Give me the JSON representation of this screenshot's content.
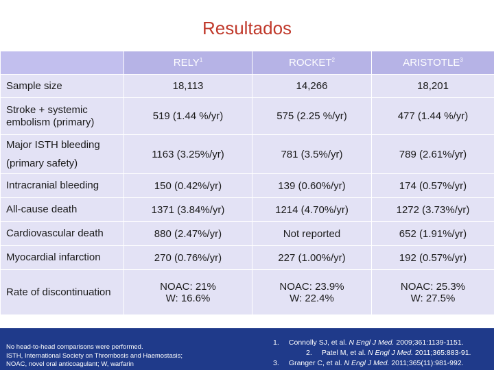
{
  "title": "Resultados",
  "table": {
    "headers": [
      {
        "name": "RELY",
        "sup": "1"
      },
      {
        "name": "ROCKET",
        "sup": "2"
      },
      {
        "name": "ARISTOTLE",
        "sup": "3"
      }
    ],
    "rows": [
      {
        "label": [
          "Sample size"
        ],
        "cells": [
          "18,113",
          "14,266",
          "18,201"
        ]
      },
      {
        "label": [
          "Stroke + systemic",
          "embolism (primary)"
        ],
        "cells": [
          "519 (1.44 %/yr)",
          "575 (2.25 %/yr)",
          "477 (1.44 %/yr)"
        ]
      },
      {
        "label": [
          "Major ISTH bleeding",
          "(primary safety)"
        ],
        "cells": [
          "1163 (3.25%/yr)",
          "781 (3.5%/yr)",
          "789 (2.61%/yr)"
        ]
      },
      {
        "label": [
          "Intracranial bleeding"
        ],
        "cells": [
          "150 (0.42%/yr)",
          "139 (0.60%/yr)",
          "174 (0.57%/yr)"
        ]
      },
      {
        "label": [
          "All-cause death"
        ],
        "cells": [
          "1371 (3.84%/yr)",
          "1214 (4.70%/yr)",
          "1272 (3.73%/yr)"
        ]
      },
      {
        "label": [
          "Cardiovascular death"
        ],
        "cells": [
          "880 (2.47%/yr)",
          "Not reported",
          "652 (1.91%/yr)"
        ]
      },
      {
        "label": [
          "Myocardial infarction"
        ],
        "cells": [
          "270 (0.76%/yr)",
          "227 (1.00%/yr)",
          "192 (0.57%/yr)"
        ]
      },
      {
        "label": [
          "Rate of discontinuation"
        ],
        "cells": [
          "NOAC: 21%|W: 16.6%",
          "NOAC: 23.9%|W: 22.4%",
          "NOAC: 25.3%|W: 27.5%"
        ]
      }
    ]
  },
  "footnote": {
    "line1": "No head-to-head comparisons were performed.",
    "line2": "ISTH, International Society on Thrombosis and Haemostasis;",
    "line3": "NOAC, novel oral anticoagulant; W, warfarin"
  },
  "references": [
    {
      "num": "1.",
      "authors": "Connolly SJ, et al.",
      "journal": "N Engl J Med.",
      "rest": "2009;361:1139-1151."
    },
    {
      "num": "2.",
      "authors": "Patel M, et al.",
      "journal": "N Engl J Med.",
      "rest": "2011;365:883-91."
    },
    {
      "num": "3.",
      "authors": "Granger C, et al.",
      "journal": "N Engl J Med.",
      "rest": "2011;365(11):981-992."
    }
  ]
}
